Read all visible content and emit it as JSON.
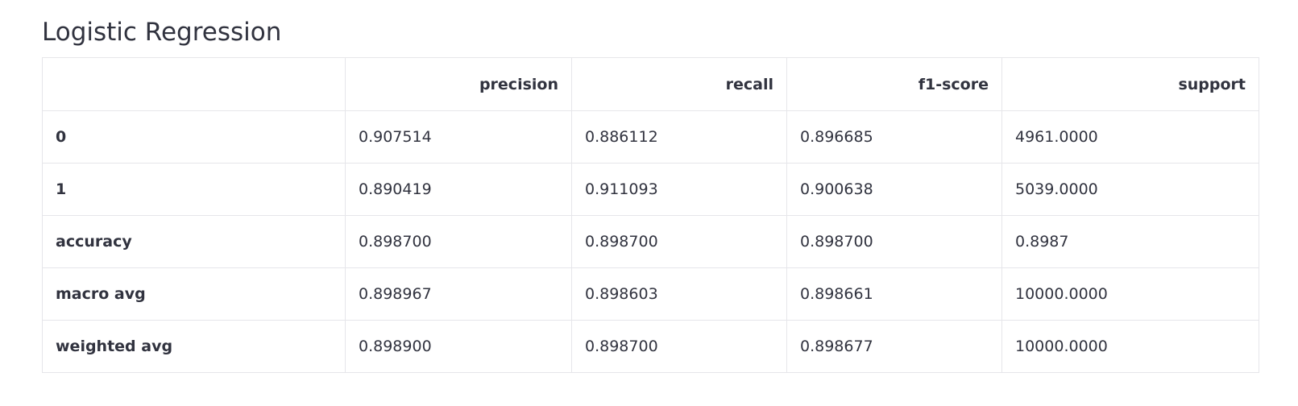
{
  "title": "Logistic Regression",
  "table": {
    "columns": [
      "",
      "precision",
      "recall",
      "f1-score",
      "support"
    ],
    "rows": [
      {
        "label": "0",
        "values": [
          "0.907514",
          "0.886112",
          "0.896685",
          "4961.0000"
        ]
      },
      {
        "label": "1",
        "values": [
          "0.890419",
          "0.911093",
          "0.900638",
          "5039.0000"
        ]
      },
      {
        "label": "accuracy",
        "values": [
          "0.898700",
          "0.898700",
          "0.898700",
          "0.8987"
        ]
      },
      {
        "label": "macro avg",
        "values": [
          "0.898967",
          "0.898603",
          "0.898661",
          "10000.0000"
        ]
      },
      {
        "label": "weighted avg",
        "values": [
          "0.898900",
          "0.898700",
          "0.898677",
          "10000.0000"
        ]
      }
    ]
  }
}
